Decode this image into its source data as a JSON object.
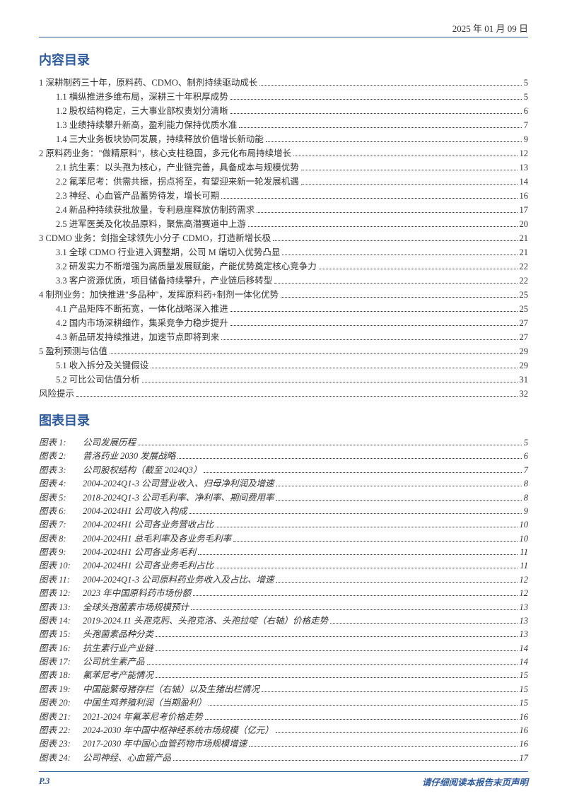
{
  "header": {
    "date": "2025 年 01 月 09 日"
  },
  "toc_title": "内容目录",
  "toc": [
    {
      "level": 1,
      "label": "1 深耕制药三十年，原料药、CDMO、制剂持续驱动成长",
      "page": "5"
    },
    {
      "level": 2,
      "label": "1.1 横纵推进多维布局，深耕三十年积厚成势",
      "page": "5"
    },
    {
      "level": 2,
      "label": "1.2 股权结构稳定，三大事业部权责划分清晰",
      "page": "6"
    },
    {
      "level": 2,
      "label": "1.3 业绩持续攀升新高，盈利能力保持优质水准",
      "page": "7"
    },
    {
      "level": 2,
      "label": "1.4 三大业务板块协同发展，持续释放价值增长新动能",
      "page": "9"
    },
    {
      "level": 1,
      "label": "2 原料药业务：\"做精原料\"，核心支柱稳固，多元化布局持续增长",
      "page": "12"
    },
    {
      "level": 2,
      "label": "2.1 抗生素：以头孢为核心，产业链完善，具备成本与规模优势",
      "page": "13"
    },
    {
      "level": 2,
      "label": "2.2 氟苯尼考：供需共振，拐点将至，有望迎来新一轮发展机遇",
      "page": "14"
    },
    {
      "level": 2,
      "label": "2.3 神经、心血管产品蓄势待发，增长可期",
      "page": "16"
    },
    {
      "level": 2,
      "label": "2.4 新品种持续获批放量，专利悬崖释放仿制药需求",
      "page": "17"
    },
    {
      "level": 2,
      "label": "2.5 进军医美及化妆品原料，聚焦高潜赛道中上游",
      "page": "20"
    },
    {
      "level": 1,
      "label": "3 CDMO 业务：剑指全球领先小分子 CDMO，打造新增长极",
      "page": "21"
    },
    {
      "level": 2,
      "label": "3.1 全球 CDMO 行业进入调整期，公司 M 端切入优势凸显",
      "page": "21"
    },
    {
      "level": 2,
      "label": "3.2 研发实力不断增强为高质量发展赋能，产能优势奠定核心竞争力",
      "page": "22"
    },
    {
      "level": 2,
      "label": "3.3 客户资源优质，项目储备持续攀升，产业链后移转型",
      "page": "22"
    },
    {
      "level": 1,
      "label": "4 制剂业务：加快推进\"多品种\"，发挥原料药+制剂一体化优势",
      "page": "25"
    },
    {
      "level": 2,
      "label": "4.1 产品矩阵不断拓宽，一体化战略深入推进",
      "page": "25"
    },
    {
      "level": 2,
      "label": "4.2 国内市场深耕细作，集采竞争力稳步提升",
      "page": "27"
    },
    {
      "level": 2,
      "label": "4.3 新品研发持续推进，加速节点即将到来",
      "page": "27"
    },
    {
      "level": 1,
      "label": "5 盈利预测与估值",
      "page": "29"
    },
    {
      "level": 2,
      "label": "5.1 收入拆分及关键假设",
      "page": "29"
    },
    {
      "level": 2,
      "label": "5.2 可比公司估值分析",
      "page": "31"
    },
    {
      "level": 1,
      "label": "风险提示",
      "page": "32"
    }
  ],
  "fig_title": "图表目录",
  "figures": [
    {
      "prefix": "图表 1:",
      "title": "公司发展历程",
      "page": "5"
    },
    {
      "prefix": "图表 2:",
      "title": "普洛药业 2030 发展战略",
      "page": "6"
    },
    {
      "prefix": "图表 3:",
      "title": "公司股权结构（截至 2024Q3）",
      "page": "7"
    },
    {
      "prefix": "图表 4:",
      "title": "2004-2024Q1-3 公司营业收入、归母净利润及增速",
      "page": "8"
    },
    {
      "prefix": "图表 5:",
      "title": "2018-2024Q1-3 公司毛利率、净利率、期间费用率",
      "page": "8"
    },
    {
      "prefix": "图表 6:",
      "title": "2004-2024H1 公司收入构成",
      "page": "9"
    },
    {
      "prefix": "图表 7:",
      "title": "2004-2024H1 公司各业务营收占比",
      "page": "10"
    },
    {
      "prefix": "图表 8:",
      "title": "2004-2024H1 总毛利率及各业务毛利率",
      "page": "10"
    },
    {
      "prefix": "图表 9:",
      "title": "2004-2024H1 公司各业务毛利",
      "page": "11"
    },
    {
      "prefix": "图表 10:",
      "title": "2004-2024H1 公司各业务毛利占比",
      "page": "11"
    },
    {
      "prefix": "图表 11:",
      "title": "2004-2024Q1-3 公司原料药业务收入及占比、增速",
      "page": "12"
    },
    {
      "prefix": "图表 12:",
      "title": "2023 年中国原料药市场份额",
      "page": "12"
    },
    {
      "prefix": "图表 13:",
      "title": "全球头孢菌素市场规模预计",
      "page": "13"
    },
    {
      "prefix": "图表 14:",
      "title": "2019-2024.11 头孢克肟、头孢克洛、头孢拉啶（右轴）价格走势",
      "page": "13"
    },
    {
      "prefix": "图表 15:",
      "title": "头孢菌素品种分类",
      "page": "13"
    },
    {
      "prefix": "图表 16:",
      "title": "抗生素行业产业链",
      "page": "14"
    },
    {
      "prefix": "图表 17:",
      "title": "公司抗生素产品",
      "page": "14"
    },
    {
      "prefix": "图表 18:",
      "title": "氟苯尼考产能情况",
      "page": "15"
    },
    {
      "prefix": "图表 19:",
      "title": "中国能繁母猪存栏（右轴）以及生猪出栏情况",
      "page": "15"
    },
    {
      "prefix": "图表 20:",
      "title": "中国生鸡养殖利润（当期盈利）",
      "page": "15"
    },
    {
      "prefix": "图表 21:",
      "title": "2021-2024 年氟苯尼考价格走势",
      "page": "16"
    },
    {
      "prefix": "图表 22:",
      "title": "2024-2030 年中国中枢神经系统市场规模（亿元）",
      "page": "16"
    },
    {
      "prefix": "图表 23:",
      "title": "2017-2030 年中国心血管药物市场规模增速",
      "page": "16"
    },
    {
      "prefix": "图表 24:",
      "title": "公司神经、心血管产品",
      "page": "17"
    }
  ],
  "footer": {
    "left": "P.3",
    "right": "请仔细阅读本报告末页声明"
  }
}
